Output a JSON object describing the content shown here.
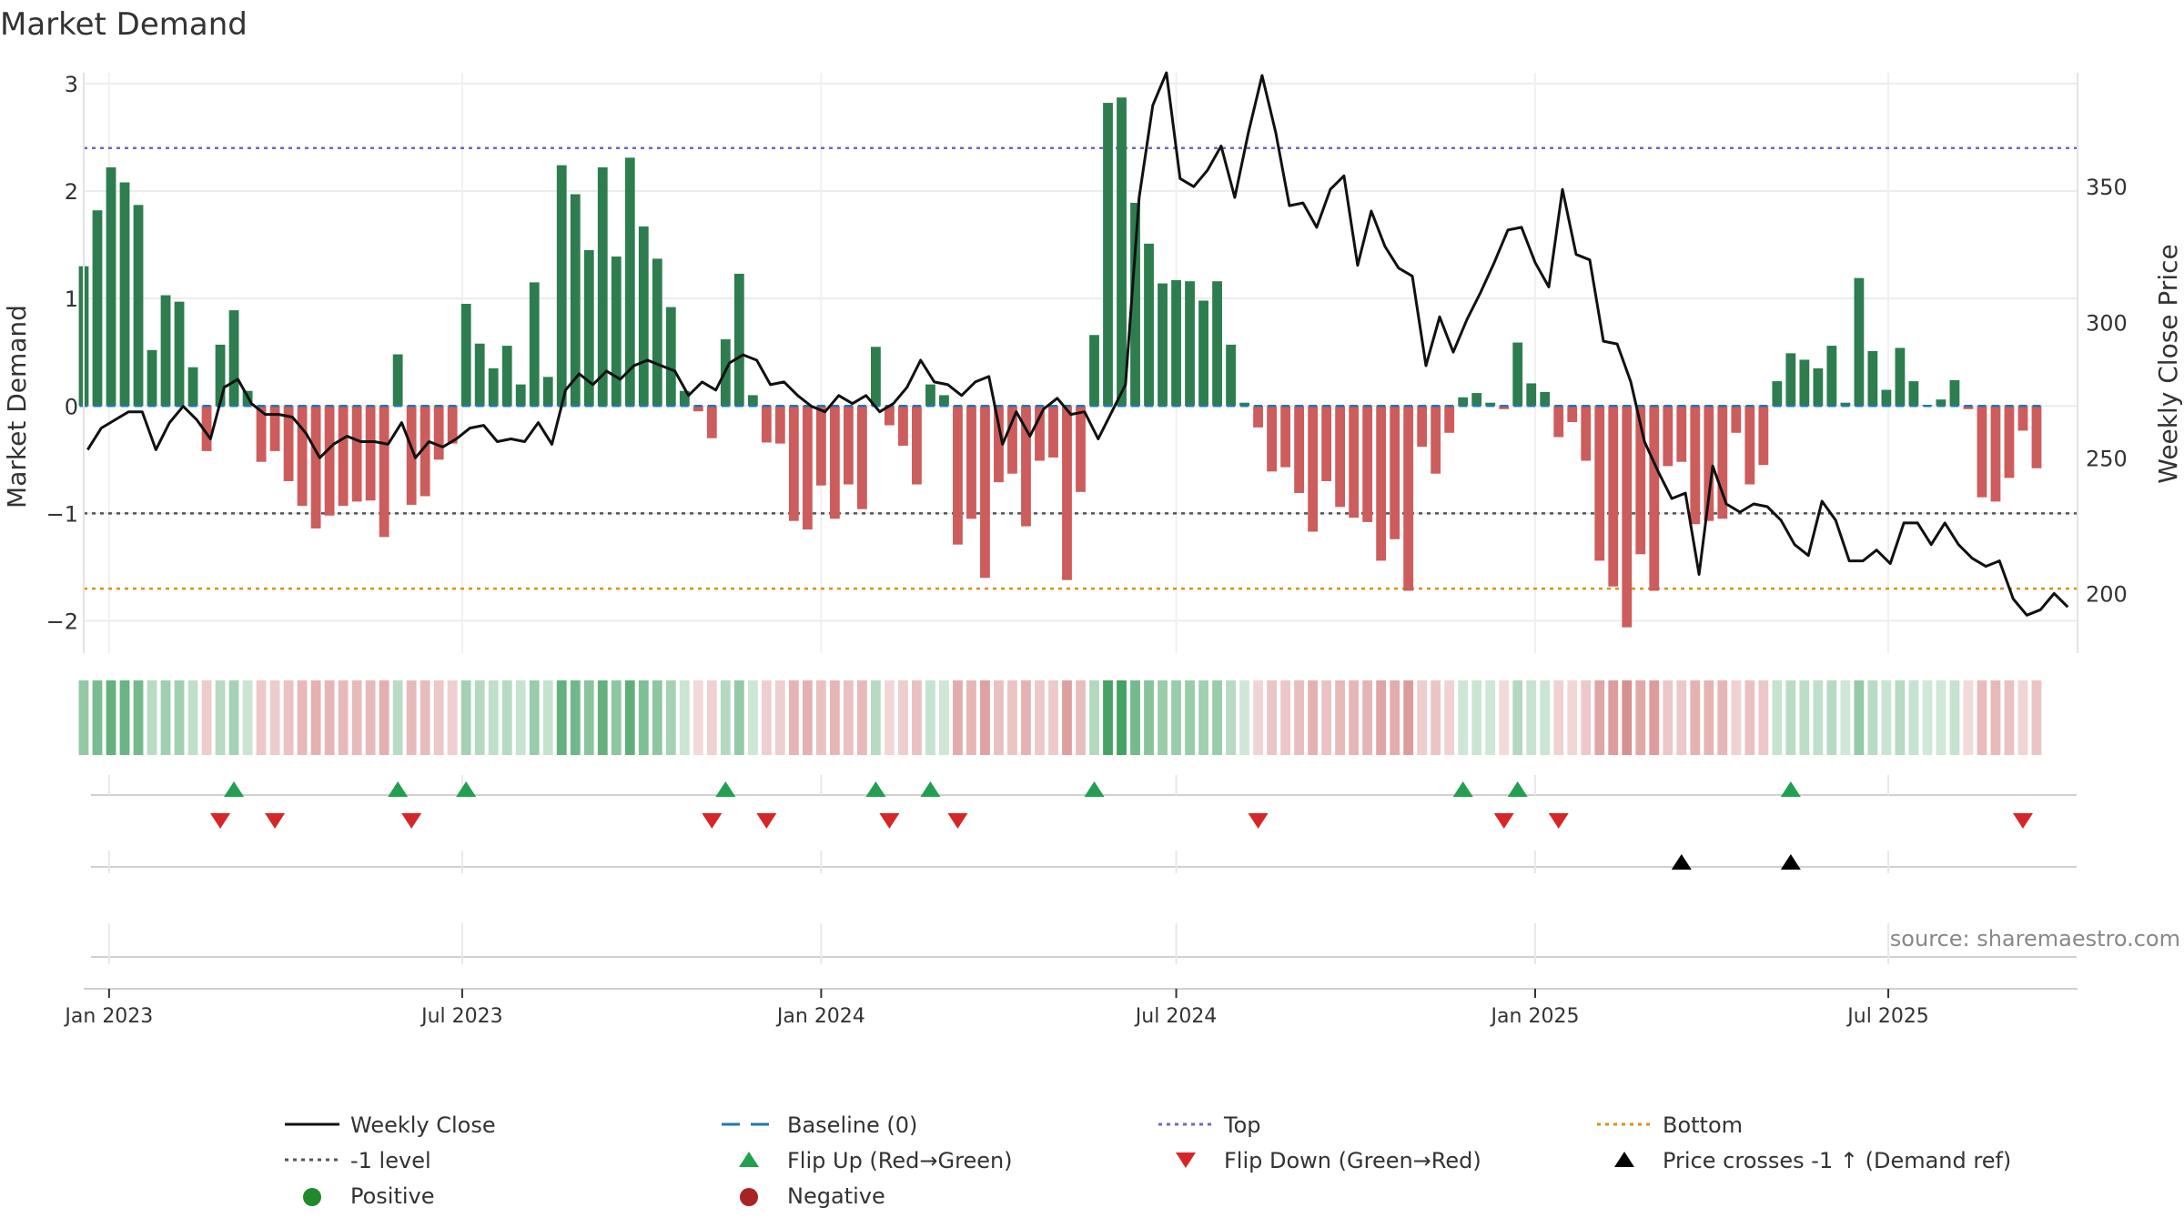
{
  "chart_data": {
    "type": "bar",
    "title": "Market Demand",
    "ylabel": "Market Demand",
    "y2label": "Weekly Close Price",
    "ylim": [
      -2.3,
      3.1
    ],
    "y2lim": [
      178,
      392
    ],
    "yticks": [
      3,
      2,
      1,
      0,
      -1,
      -2
    ],
    "yticklabels": [
      "3",
      "2",
      "1",
      "0",
      "−1",
      "−2"
    ],
    "y2ticks": [
      350,
      300,
      250,
      200
    ],
    "y2ticklabels": [
      "350",
      "300",
      "250",
      "200"
    ],
    "x_start": "2022-12-19",
    "x_end": "2025-10-06",
    "x_ticks": [
      {
        "date": "2023-01-01",
        "label": "Jan 2023"
      },
      {
        "date": "2023-07-01",
        "label": "Jul 2023"
      },
      {
        "date": "2024-01-01",
        "label": "Jan 2024"
      },
      {
        "date": "2024-07-01",
        "label": "Jul 2024"
      },
      {
        "date": "2025-01-01",
        "label": "Jan 2025"
      },
      {
        "date": "2025-07-01",
        "label": "Jul 2025"
      }
    ],
    "bar_start": "2022-12-19",
    "bar_step_days": 7,
    "demand": [
      1.3,
      1.82,
      2.22,
      2.08,
      1.87,
      0.52,
      1.03,
      0.97,
      0.36,
      -0.42,
      0.57,
      0.89,
      0.14,
      -0.52,
      -0.42,
      -0.7,
      -0.93,
      -1.14,
      -1.02,
      -0.93,
      -0.89,
      -0.88,
      -1.22,
      0.48,
      -0.92,
      -0.84,
      -0.5,
      -0.35,
      0.95,
      0.58,
      0.35,
      0.56,
      0.2,
      1.15,
      0.27,
      2.24,
      1.97,
      1.45,
      2.22,
      1.39,
      2.31,
      1.67,
      1.37,
      0.92,
      0.14,
      -0.05,
      -0.3,
      0.62,
      1.23,
      0.1,
      -0.34,
      -0.35,
      -1.07,
      -1.15,
      -0.74,
      -1.05,
      -0.73,
      -0.96,
      0.55,
      -0.18,
      -0.37,
      -0.73,
      0.2,
      0.1,
      -1.29,
      -1.05,
      -1.6,
      -0.71,
      -0.63,
      -1.12,
      -0.51,
      -0.48,
      -1.62,
      -0.8,
      0.66,
      2.82,
      2.87,
      1.89,
      1.51,
      1.14,
      1.17,
      1.16,
      0.98,
      1.16,
      0.57,
      0.03,
      -0.2,
      -0.61,
      -0.57,
      -0.81,
      -1.17,
      -0.7,
      -0.94,
      -1.04,
      -1.08,
      -1.44,
      -1.24,
      -1.72,
      -0.38,
      -0.63,
      -0.25,
      0.08,
      0.12,
      0.03,
      -0.03,
      0.59,
      0.21,
      0.13,
      -0.29,
      -0.15,
      -0.51,
      -1.44,
      -1.68,
      -2.06,
      -1.38,
      -1.72,
      -0.56,
      -0.52,
      -1.1,
      -1.07,
      -1.05,
      -0.25,
      -0.73,
      -0.55,
      0.23,
      0.49,
      0.43,
      0.35,
      0.56,
      0.03,
      1.19,
      0.51,
      0.15,
      0.54,
      0.23,
      0.01,
      0.06,
      0.24,
      -0.03,
      -0.85,
      -0.89,
      -0.67,
      -0.23,
      -0.58
    ],
    "price_start": "2022-12-21",
    "price": [
      253,
      261,
      264,
      267,
      267,
      253,
      263,
      269,
      264,
      257,
      276,
      279,
      270,
      266,
      266,
      265,
      259,
      250,
      255,
      258,
      256,
      256,
      255,
      263,
      250,
      256,
      254,
      257,
      261,
      262,
      256,
      257,
      256,
      263,
      255,
      275,
      281,
      277,
      282,
      279,
      284,
      286,
      284,
      282,
      273,
      278,
      275,
      285,
      288,
      286,
      277,
      278,
      273,
      269,
      267,
      273,
      270,
      273,
      267,
      270,
      276,
      286,
      278,
      277,
      273,
      278,
      280,
      255,
      267,
      258,
      268,
      272,
      266,
      267,
      257,
      267,
      277,
      346,
      380,
      392,
      353,
      350,
      356,
      365,
      346,
      370,
      391,
      370,
      343,
      344,
      335,
      349,
      354,
      321,
      341,
      328,
      320,
      317,
      284,
      302,
      289,
      301,
      311,
      322,
      334,
      335,
      322,
      313,
      349,
      325,
      323,
      293,
      292,
      278,
      256,
      245,
      235,
      237,
      207,
      247,
      233,
      230,
      233,
      232,
      227,
      218,
      214,
      234,
      227,
      212,
      212,
      216,
      211,
      226,
      226,
      218,
      226,
      218,
      213,
      210,
      212,
      198,
      192,
      194,
      200,
      195
    ],
    "levels": {
      "top": 2.4,
      "minus_one": -1.0,
      "bottom": -1.7
    },
    "flip_up_dates": [
      "2023-03-06",
      "2023-05-29",
      "2023-07-03",
      "2023-11-13",
      "2024-01-29",
      "2024-02-26",
      "2024-05-20",
      "2024-11-25",
      "2024-12-23",
      "2025-05-12"
    ],
    "flip_down_dates": [
      "2023-02-27",
      "2023-03-27",
      "2023-06-05",
      "2023-11-06",
      "2023-12-04",
      "2024-02-05",
      "2024-03-11",
      "2024-08-12",
      "2024-12-16",
      "2025-01-13",
      "2025-09-08"
    ],
    "price_cross_dates": [
      "2025-03-17",
      "2025-05-12"
    ],
    "source": "source: sharemaestro.com",
    "legend": [
      {
        "label": "Weekly Close",
        "marker": "line",
        "color": "#111111"
      },
      {
        "label": "Baseline (0)",
        "marker": "dash",
        "color": "#1f77b4"
      },
      {
        "label": "Top",
        "marker": "dot",
        "color": "#6b6bbb"
      },
      {
        "label": "Bottom",
        "marker": "dot",
        "color": "#d98f1a"
      },
      {
        "label": "-1 level",
        "marker": "dot",
        "color": "#555555"
      },
      {
        "label": "Flip Up (Red→Green)",
        "marker": "tri-up",
        "color": "#22a050"
      },
      {
        "label": "Flip Down (Green→Red)",
        "marker": "tri-down",
        "color": "#d62728"
      },
      {
        "label": "Price crosses -1 ↑ (Demand ref)",
        "marker": "tri-up",
        "color": "#000000"
      },
      {
        "label": "Positive",
        "marker": "circle",
        "color": "#1f8b2c"
      },
      {
        "label": "Negative",
        "marker": "circle",
        "color": "#a82424"
      }
    ],
    "colors": {
      "positive": "#2e7d4f",
      "negative": "#cd5c5c",
      "baseline": "#1f77b4",
      "price": "#111111",
      "flip_up": "#22a050",
      "flip_down": "#d62728",
      "cross": "#000000"
    }
  }
}
